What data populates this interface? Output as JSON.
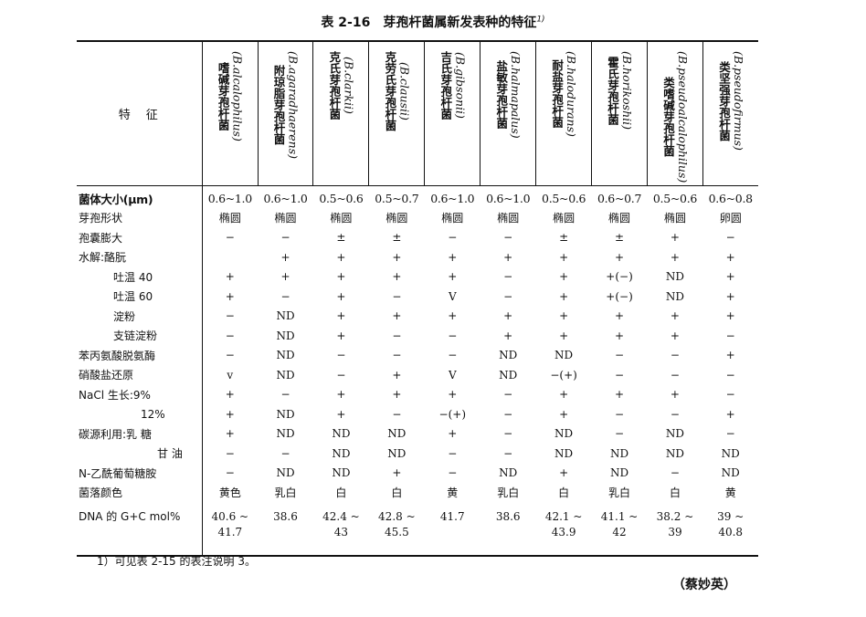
{
  "title": {
    "text": "表 2-16　芽孢杆菌属新发表种的特征",
    "note": "1)"
  },
  "table": {
    "feature_header": "特　征",
    "columns": [
      {
        "name": "嗜碱芽孢杆菌",
        "latin": "(B.alcalophilus)"
      },
      {
        "name": "附琼脂芽孢杆菌",
        "latin": "(B.agaradhaerens)"
      },
      {
        "name": "克氏芽孢杆菌",
        "latin": "(B.clarkii)"
      },
      {
        "name": "克劳氏芽孢杆菌",
        "latin": "(B.clausii)"
      },
      {
        "name": "吉氏芽孢杆菌",
        "latin": "(B.gibsonii)"
      },
      {
        "name": "盐敏芽孢杆菌",
        "latin": "(B.halmapalus)"
      },
      {
        "name": "耐盐芽孢杆菌",
        "latin": "(B.halodurans)"
      },
      {
        "name": "霍氏芽孢杆菌",
        "latin": "(B.horikoshii)"
      },
      {
        "name": "类嗜碱芽孢杆菌",
        "latin": "(B.pseudoalcalophilus)"
      },
      {
        "name": "类坚强芽孢杆菌",
        "latin": "(B.pseudofirmus)"
      }
    ],
    "rows": [
      {
        "label": "菌体大小(μm)",
        "cells": [
          "0.6~1.0",
          "0.6~1.0",
          "0.5~0.6",
          "0.5~0.7",
          "0.6~1.0",
          "0.6~1.0",
          "0.5~0.6",
          "0.6~0.7",
          "0.5~0.6",
          "0.6~0.8"
        ]
      },
      {
        "label": "芽孢形状",
        "cells": [
          "椭圆",
          "椭圆",
          "椭圆",
          "椭圆",
          "椭圆",
          "椭圆",
          "椭圆",
          "椭圆",
          "椭圆",
          "卵圆"
        ]
      },
      {
        "label": "孢囊膨大",
        "cells": [
          "−",
          "−",
          "±",
          "±",
          "−",
          "−",
          "±",
          "±",
          "+",
          "−"
        ]
      },
      {
        "label": "水解:酪朊",
        "cells": [
          null,
          "+",
          "+",
          "+",
          "+",
          "+",
          "+",
          "+",
          "+",
          "+"
        ]
      },
      {
        "label": "吐温 40",
        "cells": [
          "+",
          "+",
          "+",
          "+",
          "+",
          "−",
          "+",
          "+(−)",
          "ND",
          "+"
        ]
      },
      {
        "label": "吐温 60",
        "cells": [
          "+",
          "−",
          "+",
          "−",
          "V",
          "−",
          "+",
          "+(−)",
          "ND",
          "+"
        ]
      },
      {
        "label": "淀粉",
        "cells": [
          "−",
          "ND",
          "+",
          "+",
          "+",
          "+",
          "+",
          "+",
          "+",
          "+"
        ]
      },
      {
        "label": "支链淀粉",
        "cells": [
          "−",
          "ND",
          "+",
          "−",
          "−",
          "+",
          "+",
          "+",
          "+",
          "−"
        ]
      },
      {
        "label": "苯丙氨酸脱氨酶",
        "cells": [
          "−",
          "ND",
          "−",
          "−",
          "−",
          "ND",
          "ND",
          "−",
          "−",
          "+"
        ]
      },
      {
        "label": "硝酸盐还原",
        "cells": [
          "v",
          "ND",
          "−",
          "+",
          "V",
          "ND",
          "−(+)",
          "−",
          "−",
          "−"
        ]
      },
      {
        "label": "NaCl 生长:9%",
        "cells": [
          "+",
          "−",
          "+",
          "+",
          "+",
          "−",
          "+",
          "+",
          "+",
          "−"
        ]
      },
      {
        "label": "12%",
        "cells": [
          "+",
          "ND",
          "+",
          "−",
          "−(+)",
          "−",
          "+",
          "−",
          "−",
          "+"
        ]
      },
      {
        "label": "碳源利用:乳 糖",
        "cells": [
          "+",
          "ND",
          "ND",
          "ND",
          "+",
          "−",
          "ND",
          "−",
          "ND",
          "−"
        ]
      },
      {
        "label": "甘 油",
        "cells": [
          "−",
          "−",
          "ND",
          "ND",
          "−",
          "−",
          "ND",
          "ND",
          "ND",
          "ND"
        ]
      },
      {
        "label": "N-乙酰葡萄糖胺",
        "cells": [
          "−",
          "ND",
          "ND",
          "+",
          "−",
          "ND",
          "+",
          "ND",
          "−",
          "ND"
        ]
      },
      {
        "label": "菌落颜色",
        "cells": [
          "黄色",
          "乳白",
          "白",
          "白",
          "黄",
          "乳白",
          "白",
          "乳白",
          "白",
          "黄"
        ]
      },
      {
        "label": "DNA 的 G+C mol%",
        "cells": [
          "40.6 ~ 41.7",
          "38.6",
          "42.4 ~ 43",
          "42.8 ~ 45.5",
          "41.7",
          "38.6",
          "42.1 ~ 43.9",
          "41.1 ~ 42",
          "38.2 ~ 39",
          "39 ~ 40.8"
        ]
      }
    ]
  },
  "footnote": "1）可见表 2-15 的表注说明 3。",
  "author": "（蔡妙英）"
}
